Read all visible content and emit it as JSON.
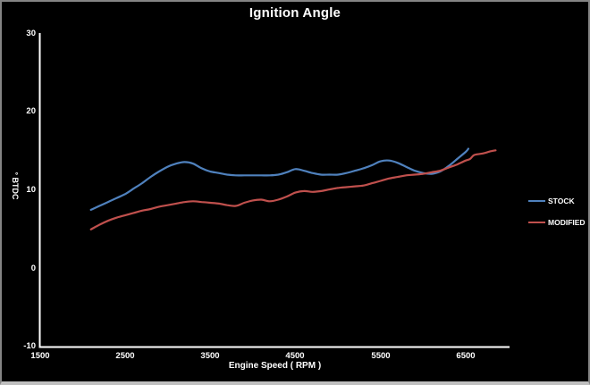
{
  "window": {
    "background": "#000000",
    "border_color": "#848484",
    "border_bottom_color": "#bfbfbf"
  },
  "chart_data": {
    "type": "line",
    "title": "Ignition Angle",
    "xlabel": "Engine Speed ( RPM )",
    "ylabel": "° BTDC",
    "xlim": [
      1500,
      7000
    ],
    "ylim": [
      -10,
      30
    ],
    "xticks": [
      1500,
      2500,
      3500,
      4500,
      5500,
      6500
    ],
    "yticks": [
      30,
      20,
      10,
      0,
      -10
    ],
    "xtick_labels": [
      "1500",
      "2500",
      "3500",
      "4500",
      "5500",
      "6500"
    ],
    "ytick_labels": [
      "30",
      "20",
      "10",
      "0",
      "-10"
    ],
    "grid": false,
    "plot_background": "#000000",
    "axis_color": "#ffffff",
    "text_color": "#ffffff",
    "legend_position": "right",
    "series": [
      {
        "name": "STOCK",
        "color": "#4F81BD",
        "points": [
          [
            2100,
            7.5
          ],
          [
            2200,
            8.0
          ],
          [
            2300,
            8.5
          ],
          [
            2400,
            9.0
          ],
          [
            2500,
            9.5
          ],
          [
            2600,
            10.2
          ],
          [
            2700,
            10.9
          ],
          [
            2800,
            11.7
          ],
          [
            2900,
            12.4
          ],
          [
            3000,
            13.0
          ],
          [
            3100,
            13.4
          ],
          [
            3200,
            13.6
          ],
          [
            3300,
            13.4
          ],
          [
            3400,
            12.8
          ],
          [
            3500,
            12.4
          ],
          [
            3600,
            12.2
          ],
          [
            3700,
            12.0
          ],
          [
            3800,
            11.9
          ],
          [
            3900,
            11.9
          ],
          [
            4000,
            11.9
          ],
          [
            4100,
            11.9
          ],
          [
            4200,
            11.9
          ],
          [
            4300,
            12.0
          ],
          [
            4400,
            12.3
          ],
          [
            4500,
            12.7
          ],
          [
            4600,
            12.5
          ],
          [
            4700,
            12.2
          ],
          [
            4800,
            12.0
          ],
          [
            4900,
            12.0
          ],
          [
            5000,
            12.0
          ],
          [
            5100,
            12.2
          ],
          [
            5200,
            12.5
          ],
          [
            5300,
            12.8
          ],
          [
            5400,
            13.2
          ],
          [
            5500,
            13.7
          ],
          [
            5600,
            13.8
          ],
          [
            5700,
            13.5
          ],
          [
            5800,
            13.0
          ],
          [
            5900,
            12.5
          ],
          [
            6000,
            12.2
          ],
          [
            6100,
            12.1
          ],
          [
            6200,
            12.4
          ],
          [
            6300,
            13.1
          ],
          [
            6400,
            14.0
          ],
          [
            6500,
            14.9
          ],
          [
            6530,
            15.3
          ]
        ]
      },
      {
        "name": "MODIFIED",
        "color": "#C0504D",
        "points": [
          [
            2100,
            5.0
          ],
          [
            2200,
            5.6
          ],
          [
            2300,
            6.1
          ],
          [
            2400,
            6.5
          ],
          [
            2500,
            6.8
          ],
          [
            2600,
            7.1
          ],
          [
            2700,
            7.4
          ],
          [
            2800,
            7.6
          ],
          [
            2900,
            7.9
          ],
          [
            3000,
            8.1
          ],
          [
            3100,
            8.3
          ],
          [
            3200,
            8.5
          ],
          [
            3300,
            8.6
          ],
          [
            3400,
            8.5
          ],
          [
            3500,
            8.4
          ],
          [
            3600,
            8.3
          ],
          [
            3700,
            8.1
          ],
          [
            3800,
            8.0
          ],
          [
            3900,
            8.4
          ],
          [
            4000,
            8.7
          ],
          [
            4100,
            8.8
          ],
          [
            4200,
            8.6
          ],
          [
            4300,
            8.8
          ],
          [
            4400,
            9.2
          ],
          [
            4500,
            9.7
          ],
          [
            4600,
            9.9
          ],
          [
            4700,
            9.8
          ],
          [
            4800,
            9.9
          ],
          [
            4900,
            10.1
          ],
          [
            5000,
            10.3
          ],
          [
            5100,
            10.4
          ],
          [
            5200,
            10.5
          ],
          [
            5300,
            10.6
          ],
          [
            5400,
            10.9
          ],
          [
            5500,
            11.2
          ],
          [
            5600,
            11.5
          ],
          [
            5700,
            11.7
          ],
          [
            5800,
            11.9
          ],
          [
            5900,
            12.0
          ],
          [
            6000,
            12.1
          ],
          [
            6100,
            12.3
          ],
          [
            6200,
            12.5
          ],
          [
            6300,
            12.9
          ],
          [
            6400,
            13.3
          ],
          [
            6500,
            13.8
          ],
          [
            6550,
            14.0
          ],
          [
            6600,
            14.5
          ],
          [
            6700,
            14.7
          ],
          [
            6800,
            15.0
          ],
          [
            6850,
            15.1
          ]
        ]
      }
    ]
  }
}
